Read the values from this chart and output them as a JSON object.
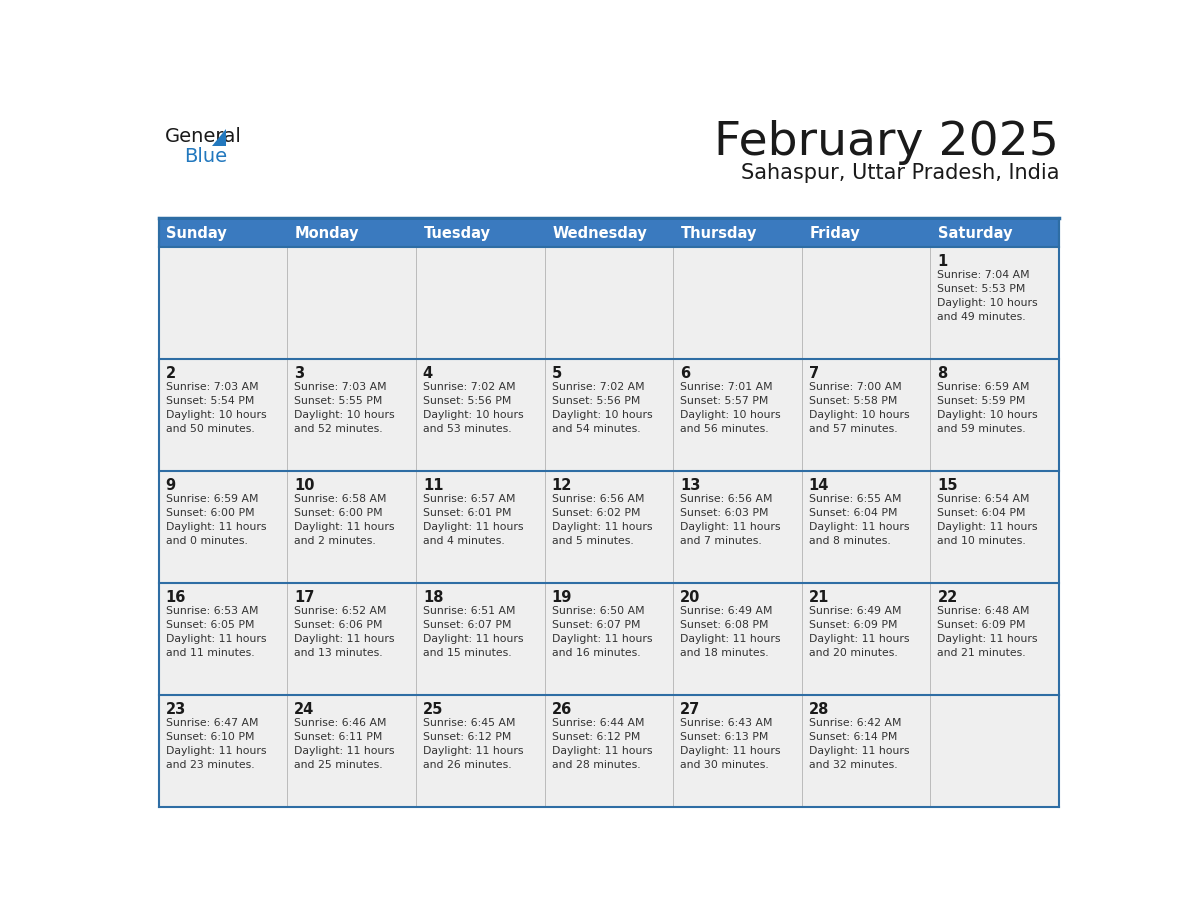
{
  "title": "February 2025",
  "subtitle": "Sahaspur, Uttar Pradesh, India",
  "header_bg": "#3a7abf",
  "header_text_color": "#ffffff",
  "day_names": [
    "Sunday",
    "Monday",
    "Tuesday",
    "Wednesday",
    "Thursday",
    "Friday",
    "Saturday"
  ],
  "title_color": "#1a1a1a",
  "subtitle_color": "#1a1a1a",
  "cell_bg_gray": "#efefef",
  "cell_bg_white": "#ffffff",
  "border_color": "#2e6da4",
  "grid_line_color": "#2e6da4",
  "day_number_color": "#1a1a1a",
  "info_text_color": "#333333",
  "logo_general_color": "#1a1a1a",
  "logo_blue_color": "#2278be",
  "weeks": [
    {
      "days": [
        {
          "day": null,
          "info": null
        },
        {
          "day": null,
          "info": null
        },
        {
          "day": null,
          "info": null
        },
        {
          "day": null,
          "info": null
        },
        {
          "day": null,
          "info": null
        },
        {
          "day": null,
          "info": null
        },
        {
          "day": 1,
          "info": "Sunrise: 7:04 AM\nSunset: 5:53 PM\nDaylight: 10 hours\nand 49 minutes."
        }
      ]
    },
    {
      "days": [
        {
          "day": 2,
          "info": "Sunrise: 7:03 AM\nSunset: 5:54 PM\nDaylight: 10 hours\nand 50 minutes."
        },
        {
          "day": 3,
          "info": "Sunrise: 7:03 AM\nSunset: 5:55 PM\nDaylight: 10 hours\nand 52 minutes."
        },
        {
          "day": 4,
          "info": "Sunrise: 7:02 AM\nSunset: 5:56 PM\nDaylight: 10 hours\nand 53 minutes."
        },
        {
          "day": 5,
          "info": "Sunrise: 7:02 AM\nSunset: 5:56 PM\nDaylight: 10 hours\nand 54 minutes."
        },
        {
          "day": 6,
          "info": "Sunrise: 7:01 AM\nSunset: 5:57 PM\nDaylight: 10 hours\nand 56 minutes."
        },
        {
          "day": 7,
          "info": "Sunrise: 7:00 AM\nSunset: 5:58 PM\nDaylight: 10 hours\nand 57 minutes."
        },
        {
          "day": 8,
          "info": "Sunrise: 6:59 AM\nSunset: 5:59 PM\nDaylight: 10 hours\nand 59 minutes."
        }
      ]
    },
    {
      "days": [
        {
          "day": 9,
          "info": "Sunrise: 6:59 AM\nSunset: 6:00 PM\nDaylight: 11 hours\nand 0 minutes."
        },
        {
          "day": 10,
          "info": "Sunrise: 6:58 AM\nSunset: 6:00 PM\nDaylight: 11 hours\nand 2 minutes."
        },
        {
          "day": 11,
          "info": "Sunrise: 6:57 AM\nSunset: 6:01 PM\nDaylight: 11 hours\nand 4 minutes."
        },
        {
          "day": 12,
          "info": "Sunrise: 6:56 AM\nSunset: 6:02 PM\nDaylight: 11 hours\nand 5 minutes."
        },
        {
          "day": 13,
          "info": "Sunrise: 6:56 AM\nSunset: 6:03 PM\nDaylight: 11 hours\nand 7 minutes."
        },
        {
          "day": 14,
          "info": "Sunrise: 6:55 AM\nSunset: 6:04 PM\nDaylight: 11 hours\nand 8 minutes."
        },
        {
          "day": 15,
          "info": "Sunrise: 6:54 AM\nSunset: 6:04 PM\nDaylight: 11 hours\nand 10 minutes."
        }
      ]
    },
    {
      "days": [
        {
          "day": 16,
          "info": "Sunrise: 6:53 AM\nSunset: 6:05 PM\nDaylight: 11 hours\nand 11 minutes."
        },
        {
          "day": 17,
          "info": "Sunrise: 6:52 AM\nSunset: 6:06 PM\nDaylight: 11 hours\nand 13 minutes."
        },
        {
          "day": 18,
          "info": "Sunrise: 6:51 AM\nSunset: 6:07 PM\nDaylight: 11 hours\nand 15 minutes."
        },
        {
          "day": 19,
          "info": "Sunrise: 6:50 AM\nSunset: 6:07 PM\nDaylight: 11 hours\nand 16 minutes."
        },
        {
          "day": 20,
          "info": "Sunrise: 6:49 AM\nSunset: 6:08 PM\nDaylight: 11 hours\nand 18 minutes."
        },
        {
          "day": 21,
          "info": "Sunrise: 6:49 AM\nSunset: 6:09 PM\nDaylight: 11 hours\nand 20 minutes."
        },
        {
          "day": 22,
          "info": "Sunrise: 6:48 AM\nSunset: 6:09 PM\nDaylight: 11 hours\nand 21 minutes."
        }
      ]
    },
    {
      "days": [
        {
          "day": 23,
          "info": "Sunrise: 6:47 AM\nSunset: 6:10 PM\nDaylight: 11 hours\nand 23 minutes."
        },
        {
          "day": 24,
          "info": "Sunrise: 6:46 AM\nSunset: 6:11 PM\nDaylight: 11 hours\nand 25 minutes."
        },
        {
          "day": 25,
          "info": "Sunrise: 6:45 AM\nSunset: 6:12 PM\nDaylight: 11 hours\nand 26 minutes."
        },
        {
          "day": 26,
          "info": "Sunrise: 6:44 AM\nSunset: 6:12 PM\nDaylight: 11 hours\nand 28 minutes."
        },
        {
          "day": 27,
          "info": "Sunrise: 6:43 AM\nSunset: 6:13 PM\nDaylight: 11 hours\nand 30 minutes."
        },
        {
          "day": 28,
          "info": "Sunrise: 6:42 AM\nSunset: 6:14 PM\nDaylight: 11 hours\nand 32 minutes."
        },
        {
          "day": null,
          "info": null
        }
      ]
    }
  ]
}
